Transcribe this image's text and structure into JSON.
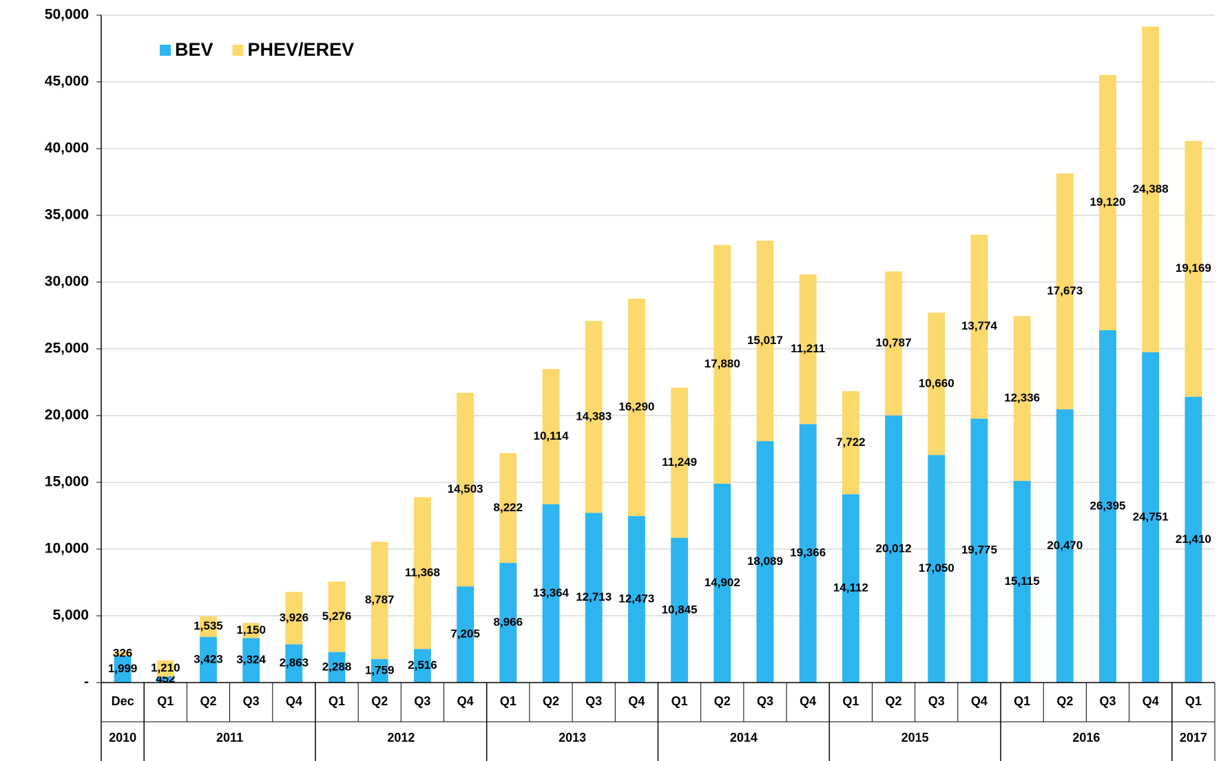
{
  "chart_data": {
    "type": "stacked_bar",
    "categories": [
      "Dec",
      "Q1",
      "Q2",
      "Q3",
      "Q4",
      "Q1",
      "Q2",
      "Q3",
      "Q4",
      "Q1",
      "Q2",
      "Q3",
      "Q4",
      "Q1",
      "Q2",
      "Q3",
      "Q4",
      "Q1",
      "Q2",
      "Q3",
      "Q4",
      "Q1",
      "Q2",
      "Q3",
      "Q4",
      "Q1"
    ],
    "category_groups": [
      {
        "label": "2010",
        "span": 1
      },
      {
        "label": "2011",
        "span": 4
      },
      {
        "label": "2012",
        "span": 4
      },
      {
        "label": "2013",
        "span": 4
      },
      {
        "label": "2014",
        "span": 4
      },
      {
        "label": "2015",
        "span": 4
      },
      {
        "label": "2016",
        "span": 4
      },
      {
        "label": "2017",
        "span": 1
      }
    ],
    "series": [
      {
        "name": "BEV",
        "color": "#2db5f0",
        "values": [
          1999,
          452,
          3423,
          3324,
          2863,
          2288,
          1759,
          2516,
          7205,
          8966,
          13364,
          12713,
          12473,
          10845,
          14902,
          18089,
          19366,
          14112,
          20012,
          17050,
          19775,
          15115,
          20470,
          26395,
          24751,
          21410
        ],
        "value_labels": [
          "1,999",
          "452",
          "3,423",
          "3,324",
          "2,863",
          "2,288",
          "1,759",
          "2,516",
          "7,205",
          "8,966",
          "13,364",
          "12,713",
          "12,473",
          "10,845",
          "14,902",
          "18,089",
          "19,366",
          "14,112",
          "20,012",
          "17,050",
          "19,775",
          "15,115",
          "20,470",
          "26,395",
          "24,751",
          "21,410"
        ]
      },
      {
        "name": "PHEV/EREV",
        "color": "#fbd96c",
        "values": [
          326,
          1210,
          1535,
          1150,
          3926,
          5276,
          8787,
          11368,
          14503,
          8222,
          10114,
          14383,
          16290,
          11249,
          17880,
          15017,
          11211,
          7722,
          10787,
          10660,
          13774,
          12336,
          17673,
          19120,
          24388,
          19169
        ],
        "value_labels": [
          "326",
          "1,210",
          "1,535",
          "1,150",
          "3,926",
          "5,276",
          "8,787",
          "11,368",
          "14,503",
          "8,222",
          "10,114",
          "14,383",
          "16,290",
          "11,249",
          "17,880",
          "15,017",
          "11,211",
          "7,722",
          "10,787",
          "10,660",
          "13,774",
          "12,336",
          "17,673",
          "19,120",
          "24,388",
          "19,169"
        ]
      }
    ],
    "ylim": [
      0,
      50000
    ],
    "yticks": [
      {
        "value": 0,
        "label": "-"
      },
      {
        "value": 5000,
        "label": "5,000"
      },
      {
        "value": 10000,
        "label": "10,000"
      },
      {
        "value": 15000,
        "label": "15,000"
      },
      {
        "value": 20000,
        "label": "20,000"
      },
      {
        "value": 25000,
        "label": "25,000"
      },
      {
        "value": 30000,
        "label": "30,000"
      },
      {
        "value": 35000,
        "label": "35,000"
      },
      {
        "value": 40000,
        "label": "40,000"
      },
      {
        "value": 45000,
        "label": "45,000"
      },
      {
        "value": 50000,
        "label": "50,000"
      }
    ],
    "grid": true,
    "legend": "top-left"
  }
}
